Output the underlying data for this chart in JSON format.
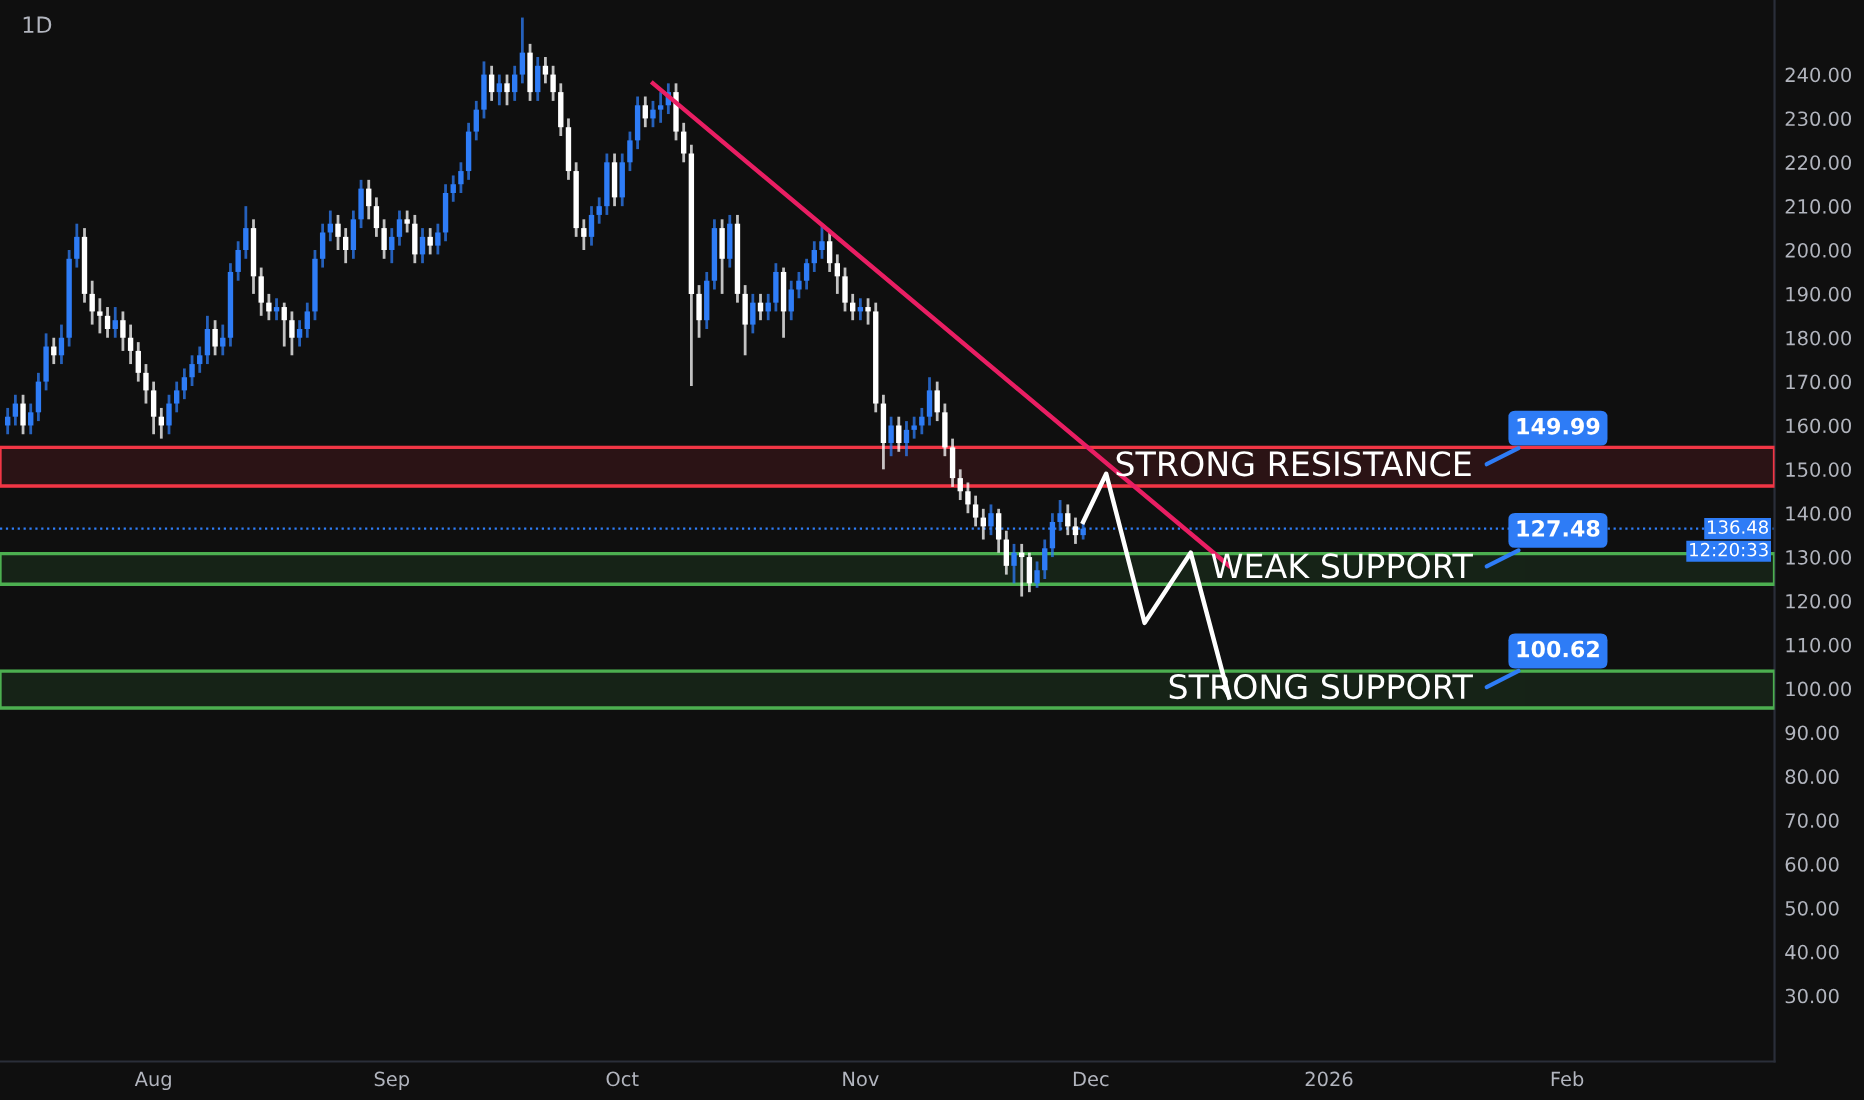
{
  "chart_data": {
    "type": "candlestick",
    "title": "1D",
    "x": [
      "2025-07-13",
      "2025-07-14",
      "2025-07-15",
      "2025-07-16",
      "2025-07-17",
      "2025-07-18",
      "2025-07-19",
      "2025-07-20",
      "2025-07-21",
      "2025-07-22",
      "2025-07-23",
      "2025-07-24",
      "2025-07-25",
      "2025-07-26",
      "2025-07-27",
      "2025-07-28",
      "2025-07-29",
      "2025-07-30",
      "2025-07-31",
      "2025-08-01",
      "2025-08-02",
      "2025-08-03",
      "2025-08-04",
      "2025-08-05",
      "2025-08-06",
      "2025-08-07",
      "2025-08-08",
      "2025-08-09",
      "2025-08-10",
      "2025-08-11",
      "2025-08-12",
      "2025-08-13",
      "2025-08-14",
      "2025-08-15",
      "2025-08-16",
      "2025-08-17",
      "2025-08-18",
      "2025-08-19",
      "2025-08-20",
      "2025-08-21",
      "2025-08-22",
      "2025-08-23",
      "2025-08-24",
      "2025-08-25",
      "2025-08-26",
      "2025-08-27",
      "2025-08-28",
      "2025-08-29",
      "2025-08-30",
      "2025-08-31",
      "2025-09-01",
      "2025-09-02",
      "2025-09-03",
      "2025-09-04",
      "2025-09-05",
      "2025-09-06",
      "2025-09-07",
      "2025-09-08",
      "2025-09-09",
      "2025-09-10",
      "2025-09-11",
      "2025-09-12",
      "2025-09-13",
      "2025-09-14",
      "2025-09-15",
      "2025-09-16",
      "2025-09-17",
      "2025-09-18",
      "2025-09-19",
      "2025-09-20",
      "2025-09-21",
      "2025-09-22",
      "2025-09-23",
      "2025-09-24",
      "2025-09-25",
      "2025-09-26",
      "2025-09-27",
      "2025-09-28",
      "2025-09-29",
      "2025-09-30",
      "2025-10-01",
      "2025-10-02",
      "2025-10-03",
      "2025-10-04",
      "2025-10-05",
      "2025-10-06",
      "2025-10-07",
      "2025-10-08",
      "2025-10-09",
      "2025-10-10",
      "2025-10-11",
      "2025-10-12",
      "2025-10-13",
      "2025-10-14",
      "2025-10-15",
      "2025-10-16",
      "2025-10-17",
      "2025-10-18",
      "2025-10-19",
      "2025-10-20",
      "2025-10-21",
      "2025-10-22",
      "2025-10-23",
      "2025-10-24",
      "2025-10-25",
      "2025-10-26",
      "2025-10-27",
      "2025-10-28",
      "2025-10-29",
      "2025-10-30",
      "2025-10-31",
      "2025-11-01",
      "2025-11-02",
      "2025-11-03",
      "2025-11-04",
      "2025-11-05",
      "2025-11-06",
      "2025-11-07",
      "2025-11-08",
      "2025-11-09",
      "2025-11-10",
      "2025-11-11",
      "2025-11-12",
      "2025-11-13",
      "2025-11-14",
      "2025-11-15",
      "2025-11-16",
      "2025-11-17",
      "2025-11-18",
      "2025-11-19",
      "2025-11-20",
      "2025-11-21",
      "2025-11-22",
      "2025-11-23",
      "2025-11-24",
      "2025-11-25",
      "2025-11-26",
      "2025-11-27",
      "2025-11-28",
      "2025-11-29",
      "2025-11-30"
    ],
    "ohlc": [
      [
        160,
        164,
        158,
        162
      ],
      [
        162,
        167,
        160,
        165
      ],
      [
        165,
        167,
        158,
        160
      ],
      [
        160,
        165,
        158,
        163
      ],
      [
        163,
        172,
        161,
        170
      ],
      [
        170,
        181,
        168,
        178
      ],
      [
        178,
        180,
        174,
        176
      ],
      [
        176,
        183,
        174,
        180
      ],
      [
        180,
        200,
        178,
        198
      ],
      [
        198,
        206,
        196,
        203
      ],
      [
        203,
        205,
        188,
        190
      ],
      [
        190,
        193,
        183,
        186
      ],
      [
        186,
        189,
        181,
        185
      ],
      [
        185,
        187,
        180,
        182
      ],
      [
        182,
        187,
        180,
        184
      ],
      [
        184,
        186,
        177,
        180
      ],
      [
        180,
        183,
        174,
        177
      ],
      [
        177,
        179,
        170,
        172
      ],
      [
        172,
        174,
        165,
        168
      ],
      [
        168,
        170,
        158,
        162
      ],
      [
        162,
        164,
        157,
        160
      ],
      [
        160,
        167,
        158,
        165
      ],
      [
        165,
        170,
        163,
        168
      ],
      [
        168,
        173,
        166,
        171
      ],
      [
        171,
        176,
        169,
        174
      ],
      [
        174,
        178,
        172,
        176
      ],
      [
        176,
        185,
        174,
        182
      ],
      [
        182,
        184,
        176,
        178
      ],
      [
        178,
        183,
        176,
        180
      ],
      [
        180,
        197,
        178,
        195
      ],
      [
        195,
        202,
        193,
        200
      ],
      [
        200,
        210,
        198,
        205
      ],
      [
        205,
        207,
        190,
        194
      ],
      [
        194,
        196,
        185,
        188
      ],
      [
        188,
        190,
        184,
        186
      ],
      [
        186,
        189,
        184,
        187
      ],
      [
        187,
        188,
        178,
        184
      ],
      [
        184,
        186,
        176,
        180
      ],
      [
        180,
        184,
        178,
        182
      ],
      [
        182,
        188,
        180,
        186
      ],
      [
        186,
        200,
        184,
        198
      ],
      [
        198,
        206,
        196,
        204
      ],
      [
        204,
        209,
        202,
        206
      ],
      [
        206,
        208,
        200,
        203
      ],
      [
        203,
        205,
        197,
        200
      ],
      [
        200,
        209,
        198,
        207
      ],
      [
        207,
        216,
        205,
        214
      ],
      [
        214,
        216,
        207,
        210
      ],
      [
        210,
        212,
        203,
        205
      ],
      [
        205,
        207,
        198,
        200
      ],
      [
        200,
        205,
        197,
        203
      ],
      [
        203,
        209,
        201,
        207
      ],
      [
        207,
        209,
        204,
        206
      ],
      [
        206,
        208,
        197,
        199
      ],
      [
        199,
        205,
        197,
        203
      ],
      [
        203,
        205,
        199,
        201
      ],
      [
        201,
        206,
        199,
        204
      ],
      [
        204,
        215,
        202,
        213
      ],
      [
        213,
        217,
        211,
        215
      ],
      [
        215,
        220,
        213,
        218
      ],
      [
        218,
        229,
        216,
        227
      ],
      [
        227,
        234,
        225,
        232
      ],
      [
        232,
        243,
        230,
        240
      ],
      [
        240,
        242,
        234,
        236
      ],
      [
        236,
        240,
        233,
        238
      ],
      [
        238,
        240,
        233,
        236
      ],
      [
        236,
        242,
        234,
        240
      ],
      [
        240,
        253,
        238,
        245
      ],
      [
        245,
        247,
        234,
        236
      ],
      [
        236,
        244,
        234,
        242
      ],
      [
        242,
        244,
        238,
        240
      ],
      [
        240,
        242,
        234,
        236
      ],
      [
        236,
        238,
        226,
        228
      ],
      [
        228,
        230,
        216,
        218
      ],
      [
        218,
        220,
        203,
        205
      ],
      [
        205,
        207,
        200,
        203
      ],
      [
        203,
        210,
        201,
        208
      ],
      [
        208,
        212,
        206,
        210
      ],
      [
        210,
        222,
        208,
        220
      ],
      [
        220,
        222,
        210,
        212
      ],
      [
        212,
        222,
        210,
        220
      ],
      [
        220,
        227,
        218,
        225
      ],
      [
        225,
        235,
        223,
        233
      ],
      [
        233,
        235,
        228,
        230
      ],
      [
        230,
        234,
        228,
        232
      ],
      [
        232,
        236,
        229,
        233
      ],
      [
        233,
        238,
        231,
        236
      ],
      [
        236,
        238,
        225,
        227
      ],
      [
        227,
        229,
        220,
        222
      ],
      [
        222,
        224,
        169,
        190
      ],
      [
        190,
        192,
        180,
        184
      ],
      [
        184,
        195,
        182,
        193
      ],
      [
        193,
        207,
        191,
        205
      ],
      [
        205,
        207,
        190,
        198
      ],
      [
        198,
        208,
        196,
        206
      ],
      [
        206,
        208,
        188,
        190
      ],
      [
        190,
        192,
        176,
        183
      ],
      [
        183,
        190,
        181,
        188
      ],
      [
        188,
        190,
        184,
        186
      ],
      [
        186,
        190,
        184,
        188
      ],
      [
        188,
        197,
        186,
        195
      ],
      [
        195,
        196,
        180,
        186
      ],
      [
        186,
        193,
        184,
        191
      ],
      [
        191,
        195,
        189,
        193
      ],
      [
        193,
        198,
        191,
        197
      ],
      [
        197,
        202,
        195,
        200
      ],
      [
        200,
        206,
        198,
        202
      ],
      [
        202,
        204,
        195,
        197
      ],
      [
        197,
        199,
        190,
        194
      ],
      [
        194,
        196,
        186,
        188
      ],
      [
        188,
        190,
        184,
        186
      ],
      [
        186,
        189,
        184,
        187
      ],
      [
        187,
        189,
        183,
        186
      ],
      [
        186,
        188,
        163,
        165
      ],
      [
        165,
        167,
        150,
        156
      ],
      [
        156,
        162,
        153,
        160
      ],
      [
        160,
        162,
        154,
        156
      ],
      [
        156,
        161,
        153,
        159
      ],
      [
        159,
        162,
        157,
        160
      ],
      [
        160,
        164,
        158,
        162
      ],
      [
        162,
        171,
        160,
        168
      ],
      [
        168,
        170,
        161,
        163
      ],
      [
        163,
        165,
        153,
        155
      ],
      [
        155,
        157,
        146,
        148
      ],
      [
        148,
        150,
        143,
        145
      ],
      [
        145,
        147,
        140,
        142
      ],
      [
        142,
        144,
        137,
        139
      ],
      [
        139,
        141,
        134,
        137
      ],
      [
        137,
        142,
        135,
        140
      ],
      [
        140,
        141,
        131,
        134
      ],
      [
        134,
        136,
        126,
        128
      ],
      [
        128,
        133,
        124,
        131
      ],
      [
        131,
        133,
        121,
        130
      ],
      [
        130,
        131,
        122,
        124
      ],
      [
        124,
        129,
        123,
        127
      ],
      [
        127,
        134,
        125,
        132
      ],
      [
        132,
        140,
        130,
        138
      ],
      [
        138,
        143,
        136,
        140
      ],
      [
        140,
        142,
        135,
        137
      ],
      [
        137,
        139,
        133,
        135
      ],
      [
        135,
        138,
        134,
        136.48
      ]
    ],
    "colors": [
      "#2e7cf6",
      "#2e7cf6",
      "#ffffff",
      "#2e7cf6",
      "#2e7cf6",
      "#2e7cf6",
      "#ffffff",
      "#2e7cf6",
      "#2e7cf6",
      "#2e7cf6",
      "#ffffff",
      "#ffffff",
      "#ffffff",
      "#ffffff",
      "#2e7cf6",
      "#ffffff",
      "#ffffff",
      "#ffffff",
      "#ffffff",
      "#ffffff",
      "#ffffff",
      "#2e7cf6",
      "#2e7cf6",
      "#2e7cf6",
      "#2e7cf6",
      "#2e7cf6",
      "#2e7cf6",
      "#ffffff",
      "#2e7cf6",
      "#2e7cf6",
      "#2e7cf6",
      "#2e7cf6",
      "#ffffff",
      "#ffffff",
      "#ffffff",
      "#2e7cf6",
      "#ffffff",
      "#ffffff",
      "#2e7cf6",
      "#2e7cf6",
      "#2e7cf6",
      "#2e7cf6",
      "#2e7cf6",
      "#ffffff",
      "#ffffff",
      "#2e7cf6",
      "#2e7cf6",
      "#ffffff",
      "#ffffff",
      "#ffffff",
      "#2e7cf6",
      "#2e7cf6",
      "#ffffff",
      "#ffffff",
      "#2e7cf6",
      "#ffffff",
      "#2e7cf6",
      "#2e7cf6",
      "#2e7cf6",
      "#2e7cf6",
      "#2e7cf6",
      "#2e7cf6",
      "#2e7cf6",
      "#ffffff",
      "#2e7cf6",
      "#ffffff",
      "#2e7cf6",
      "#2e7cf6",
      "#ffffff",
      "#2e7cf6",
      "#ffffff",
      "#ffffff",
      "#ffffff",
      "#ffffff",
      "#ffffff",
      "#ffffff",
      "#2e7cf6",
      "#2e7cf6",
      "#2e7cf6",
      "#ffffff",
      "#2e7cf6",
      "#2e7cf6",
      "#2e7cf6",
      "#ffffff",
      "#2e7cf6",
      "#2e7cf6",
      "#2e7cf6",
      "#ffffff",
      "#ffffff",
      "#ffffff",
      "#ffffff",
      "#2e7cf6",
      "#2e7cf6",
      "#ffffff",
      "#2e7cf6",
      "#ffffff",
      "#ffffff",
      "#2e7cf6",
      "#ffffff",
      "#2e7cf6",
      "#2e7cf6",
      "#ffffff",
      "#2e7cf6",
      "#2e7cf6",
      "#2e7cf6",
      "#2e7cf6",
      "#2e7cf6",
      "#ffffff",
      "#ffffff",
      "#ffffff",
      "#ffffff",
      "#2e7cf6",
      "#ffffff",
      "#ffffff",
      "#ffffff",
      "#2e7cf6",
      "#ffffff",
      "#2e7cf6",
      "#2e7cf6",
      "#2e7cf6",
      "#2e7cf6",
      "#ffffff",
      "#ffffff",
      "#ffffff",
      "#ffffff",
      "#ffffff",
      "#ffffff",
      "#ffffff",
      "#2e7cf6",
      "#ffffff",
      "#ffffff",
      "#2e7cf6",
      "#ffffff",
      "#ffffff",
      "#2e7cf6",
      "#2e7cf6",
      "#2e7cf6",
      "#2e7cf6",
      "#ffffff",
      "#ffffff",
      "#2e7cf6"
    ],
    "series": [
      {
        "type": "line",
        "color": "#e91e63",
        "x": [
          "2025-10-05",
          "2025-12-19"
        ],
        "values": [
          238,
          128
        ]
      },
      {
        "type": "line",
        "color": "#ffffff",
        "x": [
          "2025-11-30",
          "2025-12-03",
          "2025-12-08",
          "2025-12-14",
          "2025-12-19"
        ],
        "values": [
          138,
          149,
          115,
          131,
          98
        ]
      }
    ],
    "bands": [
      {
        "axis": "y",
        "from": 146.2,
        "to": 155,
        "label": "STRONG RESISTANCE",
        "color": "#f23645"
      },
      {
        "axis": "y",
        "from": 123.8,
        "to": 130.8,
        "label": "WEAK SUPPORT",
        "color": "#4caf50"
      },
      {
        "axis": "y",
        "from": 95.6,
        "to": 104,
        "label": "STRONG SUPPORT",
        "color": "#4caf50"
      }
    ],
    "ref_lines": [
      {
        "axis": "y",
        "value": 136.48,
        "label": "136.48",
        "color": "#2e7cf6",
        "line_style": "dotted"
      }
    ],
    "annotations": [
      "149.99",
      "127.48",
      "100.62",
      "12:20:33"
    ],
    "xlim": [
      "2025-07-12",
      "2026-02-28"
    ],
    "xticks": [
      {
        "value": "2025-08-01",
        "label": "Aug"
      },
      {
        "value": "2025-09-01",
        "label": "Sep"
      },
      {
        "value": "2025-10-01",
        "label": "Oct"
      },
      {
        "value": "2025-11-01",
        "label": "Nov"
      },
      {
        "value": "2025-12-01",
        "label": "Dec"
      },
      {
        "value": "2026-01-01",
        "label": "2026"
      },
      {
        "value": "2026-02-01",
        "label": "Feb"
      }
    ],
    "ylim": [
      15,
      257
    ],
    "yticks": [
      {
        "value": 30,
        "label": "30.00"
      },
      {
        "value": 40,
        "label": "40.00"
      },
      {
        "value": 50,
        "label": "50.00"
      },
      {
        "value": 60,
        "label": "60.00"
      },
      {
        "value": 70,
        "label": "70.00"
      },
      {
        "value": 80,
        "label": "80.00"
      },
      {
        "value": 90,
        "label": "90.00"
      },
      {
        "value": 100,
        "label": "100.00"
      },
      {
        "value": 110,
        "label": "110.00"
      },
      {
        "value": 120,
        "label": "120.00"
      },
      {
        "value": 130,
        "label": "130.00"
      },
      {
        "value": 140,
        "label": "140.00"
      },
      {
        "value": 150,
        "label": "150.00"
      },
      {
        "value": 160,
        "label": "160.00"
      },
      {
        "value": 170,
        "label": "170.00"
      },
      {
        "value": 180,
        "label": "180.00"
      },
      {
        "value": 190,
        "label": "190.00"
      },
      {
        "value": 200,
        "label": "200.00"
      },
      {
        "value": 210,
        "label": "210.00"
      },
      {
        "value": 220,
        "label": "220.00"
      },
      {
        "value": 230,
        "label": "230.00"
      },
      {
        "value": 240,
        "label": "240.00"
      }
    ],
    "grid": false,
    "legend": false
  }
}
